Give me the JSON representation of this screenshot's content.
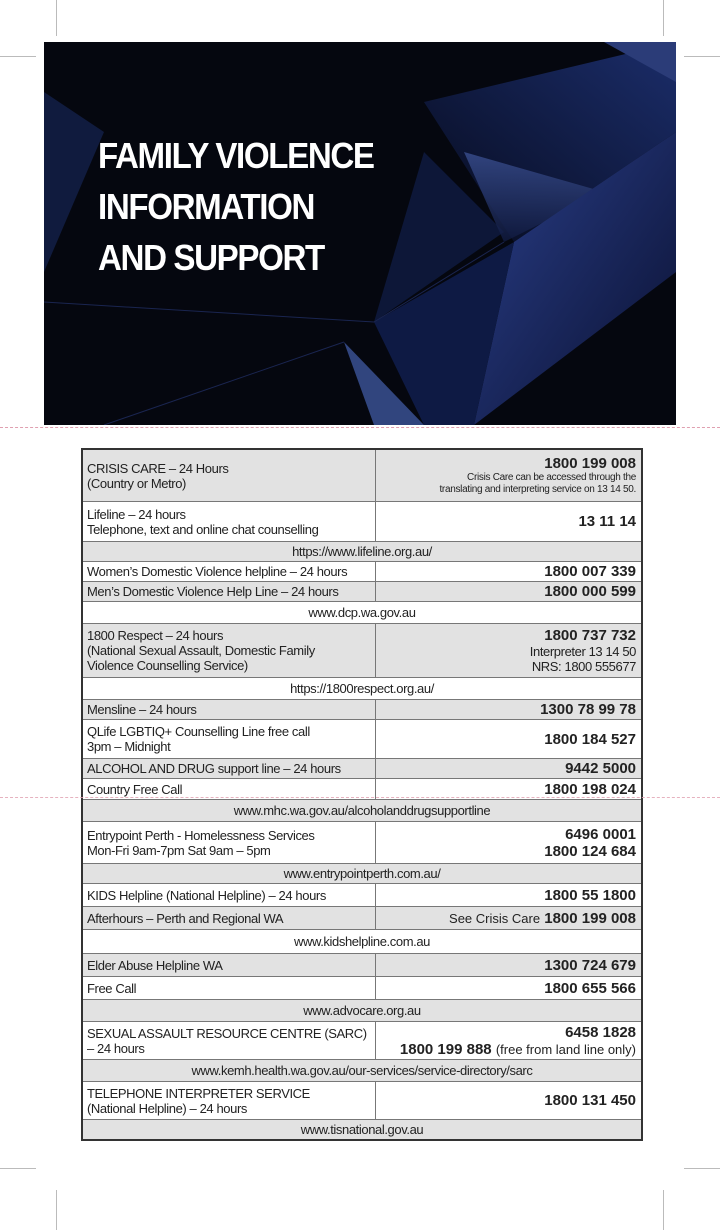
{
  "header": {
    "title_lines": [
      "FAMILY VIOLENCE",
      "INFORMATION",
      "AND SUPPORT"
    ],
    "background_color": "#05070f",
    "accent_color": "#1c2f6e"
  },
  "rows": [
    {
      "kind": "entry",
      "label": [
        "CRISIS CARE – 24 Hours",
        "(Country or Metro)"
      ],
      "phones": [
        "1800 199 008"
      ],
      "notes": [
        "Crisis Care can be accessed through the",
        "translating and interpreting service on 13 14 50."
      ]
    },
    {
      "kind": "entry",
      "label": [
        "Lifeline – 24 hours",
        "Telephone, text and online chat counselling"
      ],
      "phones": [
        "13 11 14"
      ]
    },
    {
      "kind": "url",
      "text": "https://www.lifeline.org.au/"
    },
    {
      "kind": "entry",
      "label": [
        "Women’s Domestic Violence helpline – 24 hours"
      ],
      "phones": [
        "1800 007 339"
      ]
    },
    {
      "kind": "entry",
      "label": [
        "Men’s Domestic Violence Help Line – 24 hours"
      ],
      "phones": [
        "1800 000 599"
      ]
    },
    {
      "kind": "url",
      "text": "www.dcp.wa.gov.au"
    },
    {
      "kind": "entry",
      "label": [
        "1800 Respect – 24 hours",
        "(National Sexual Assault, Domestic Family",
        "Violence Counselling Service)"
      ],
      "phones": [
        "1800 737 732"
      ],
      "extra": [
        "Interpreter 13 14 50",
        "NRS: 1800 555677"
      ]
    },
    {
      "kind": "url",
      "text": "https://1800respect.org.au/"
    },
    {
      "kind": "entry",
      "label": [
        "Mensline – 24 hours"
      ],
      "phones": [
        "1300 78 99 78"
      ]
    },
    {
      "kind": "entry",
      "label": [
        "QLife LGBTIQ+ Counselling Line free call",
        "3pm – Midnight"
      ],
      "phones": [
        "1800 184 527"
      ]
    },
    {
      "kind": "entry",
      "label": [
        "ALCOHOL AND DRUG support line – 24 hours"
      ],
      "phones": [
        "9442 5000"
      ]
    },
    {
      "kind": "entry",
      "label": [
        "Country Free Call"
      ],
      "phones": [
        "1800 198 024"
      ]
    },
    {
      "kind": "url",
      "text": "www.mhc.wa.gov.au/alcoholanddrugsupportline"
    },
    {
      "kind": "entry",
      "label": [
        "Entrypoint Perth - Homelessness Services",
        "Mon-Fri 9am-7pm Sat 9am – 5pm"
      ],
      "phones": [
        "6496 0001",
        "1800 124 684"
      ]
    },
    {
      "kind": "url",
      "text": "www.entrypointperth.com.au/"
    },
    {
      "kind": "entry",
      "label": [
        "KIDS Helpline (National Helpline) – 24 hours"
      ],
      "phones": [
        "1800 55 1800"
      ]
    },
    {
      "kind": "entry",
      "label": [
        "Afterhours – Perth and Regional WA"
      ],
      "prefix": "See Crisis Care",
      "phones": [
        "1800 199 008"
      ]
    },
    {
      "kind": "url",
      "text": "www.kidshelpline.com.au"
    },
    {
      "kind": "entry",
      "label": [
        "Elder Abuse Helpline WA"
      ],
      "phones": [
        "1300 724 679"
      ]
    },
    {
      "kind": "entry",
      "label": [
        "Free Call"
      ],
      "phones": [
        "1800 655 566"
      ]
    },
    {
      "kind": "url",
      "text": "www.advocare.org.au"
    },
    {
      "kind": "entry",
      "label": [
        "SEXUAL ASSAULT RESOURCE CENTRE (SARC)",
        "– 24 hours"
      ],
      "phones": [
        "6458 1828",
        "1800 199 888"
      ],
      "suffix": "(free from land line only)"
    },
    {
      "kind": "url",
      "text": "www.kemh.health.wa.gov.au/our-services/service-directory/sarc"
    },
    {
      "kind": "entry",
      "label": [
        "TELEPHONE INTERPRETER SERVICE",
        "(National Helpline) – 24 hours"
      ],
      "phones": [
        "1800 131 450"
      ]
    },
    {
      "kind": "url",
      "text": "www.tisnational.gov.au"
    }
  ]
}
